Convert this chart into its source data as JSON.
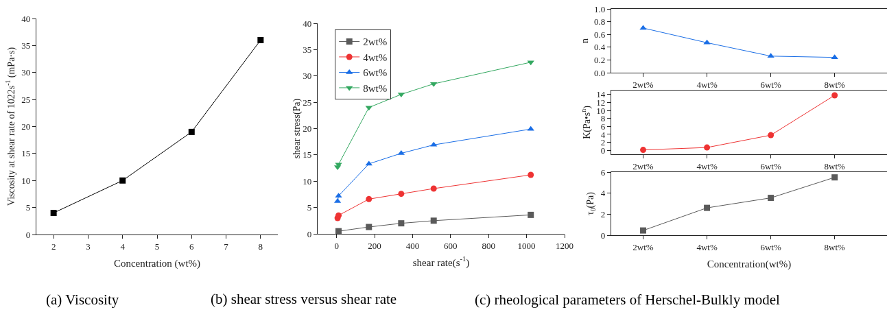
{
  "chart_data": [
    {
      "type": "line",
      "xlabel": "Concentration (wt%)",
      "ylabel": "Viscosity at shear rate of 1022s$^{-1}$ (mPa·s)",
      "annotations": [
        "(a) Viscosity"
      ],
      "x": [
        2,
        4,
        6,
        8
      ],
      "xlim": [
        1.5,
        8.5
      ],
      "xticks": [
        2,
        3,
        4,
        5,
        6,
        7,
        8
      ],
      "ylim": [
        0,
        40
      ],
      "yticks": [
        0,
        5,
        10,
        15,
        20,
        25,
        30,
        35,
        40
      ],
      "grid": false,
      "series": [
        {
          "color": "#000000",
          "marker": "square",
          "values": [
            4,
            10,
            19,
            36
          ]
        }
      ]
    },
    {
      "type": "line",
      "xlabel": "shear rate(s$^{-1}$)",
      "ylabel": "shear stress(Pa)",
      "annotations": [
        "(b) shear stress versus shear rate"
      ],
      "x": [
        5.1,
        10.2,
        170,
        340,
        511,
        1022
      ],
      "xlim": [
        -100,
        1200
      ],
      "xticks": [
        0,
        200,
        400,
        600,
        800,
        1000,
        1200
      ],
      "ylim": [
        0,
        40
      ],
      "yticks": [
        0,
        5,
        10,
        15,
        20,
        25,
        30,
        35,
        40
      ],
      "grid": false,
      "legend": "top left",
      "series": [
        {
          "name": "2wt%",
          "color": "#5a5a5a",
          "marker": "square",
          "values": [
            null,
            0.5,
            1.3,
            2.0,
            2.5,
            3.6
          ]
        },
        {
          "name": "4wt%",
          "color": "#ee3333",
          "marker": "circle",
          "values": [
            3.0,
            3.5,
            6.6,
            7.6,
            8.6,
            11.2
          ]
        },
        {
          "name": "6wt%",
          "color": "#1a6ee6",
          "marker": "triangle",
          "values": [
            6.2,
            7.2,
            13.3,
            15.3,
            16.9,
            19.9
          ]
        },
        {
          "name": "8wt%",
          "color": "#33a860",
          "marker": "triangle-down",
          "values": [
            12.7,
            13.2,
            24.0,
            26.5,
            28.5,
            32.6
          ]
        }
      ]
    },
    {
      "type": "line",
      "ylabel": "n",
      "categories": [
        "2wt%",
        "4wt%",
        "6wt%",
        "8wt%"
      ],
      "ylim": [
        0,
        1
      ],
      "yticks": [
        {
          "value": 0,
          "label": "0.0"
        },
        0.2,
        0.4,
        0.6,
        0.8,
        {
          "value": 1,
          "label": "1.0"
        }
      ],
      "grid": false,
      "series": [
        {
          "color": "#1a6ee6",
          "marker": "triangle",
          "values": [
            0.7,
            0.47,
            0.26,
            0.24
          ]
        }
      ]
    },
    {
      "type": "line",
      "ylabel": "K(Pa•s$^{n}$)",
      "categories": [
        "2wt%",
        "4wt%",
        "6wt%",
        "8wt%"
      ],
      "ylim": [
        -1,
        15
      ],
      "yticks": [
        0,
        2,
        4,
        6,
        8,
        10,
        12,
        14
      ],
      "grid": false,
      "series": [
        {
          "color": "#ee3333",
          "marker": "circle",
          "values": [
            0.1,
            0.7,
            3.8,
            13.8
          ]
        }
      ]
    },
    {
      "type": "line",
      "ylabel": "τ$_{0}$(Pa)",
      "xlabel": "Concentration(wt%)",
      "annotations": [
        "(c) rheological parameters of Herschel-Bulkly model"
      ],
      "categories": [
        "2wt%",
        "4wt%",
        "6wt%",
        "8wt%"
      ],
      "ylim": [
        0,
        6
      ],
      "yticks": [
        0,
        2,
        4,
        6
      ],
      "grid": false,
      "series": [
        {
          "color": "#5a5a5a",
          "marker": "square",
          "values": [
            0.45,
            2.6,
            3.55,
            5.5
          ]
        }
      ]
    }
  ]
}
